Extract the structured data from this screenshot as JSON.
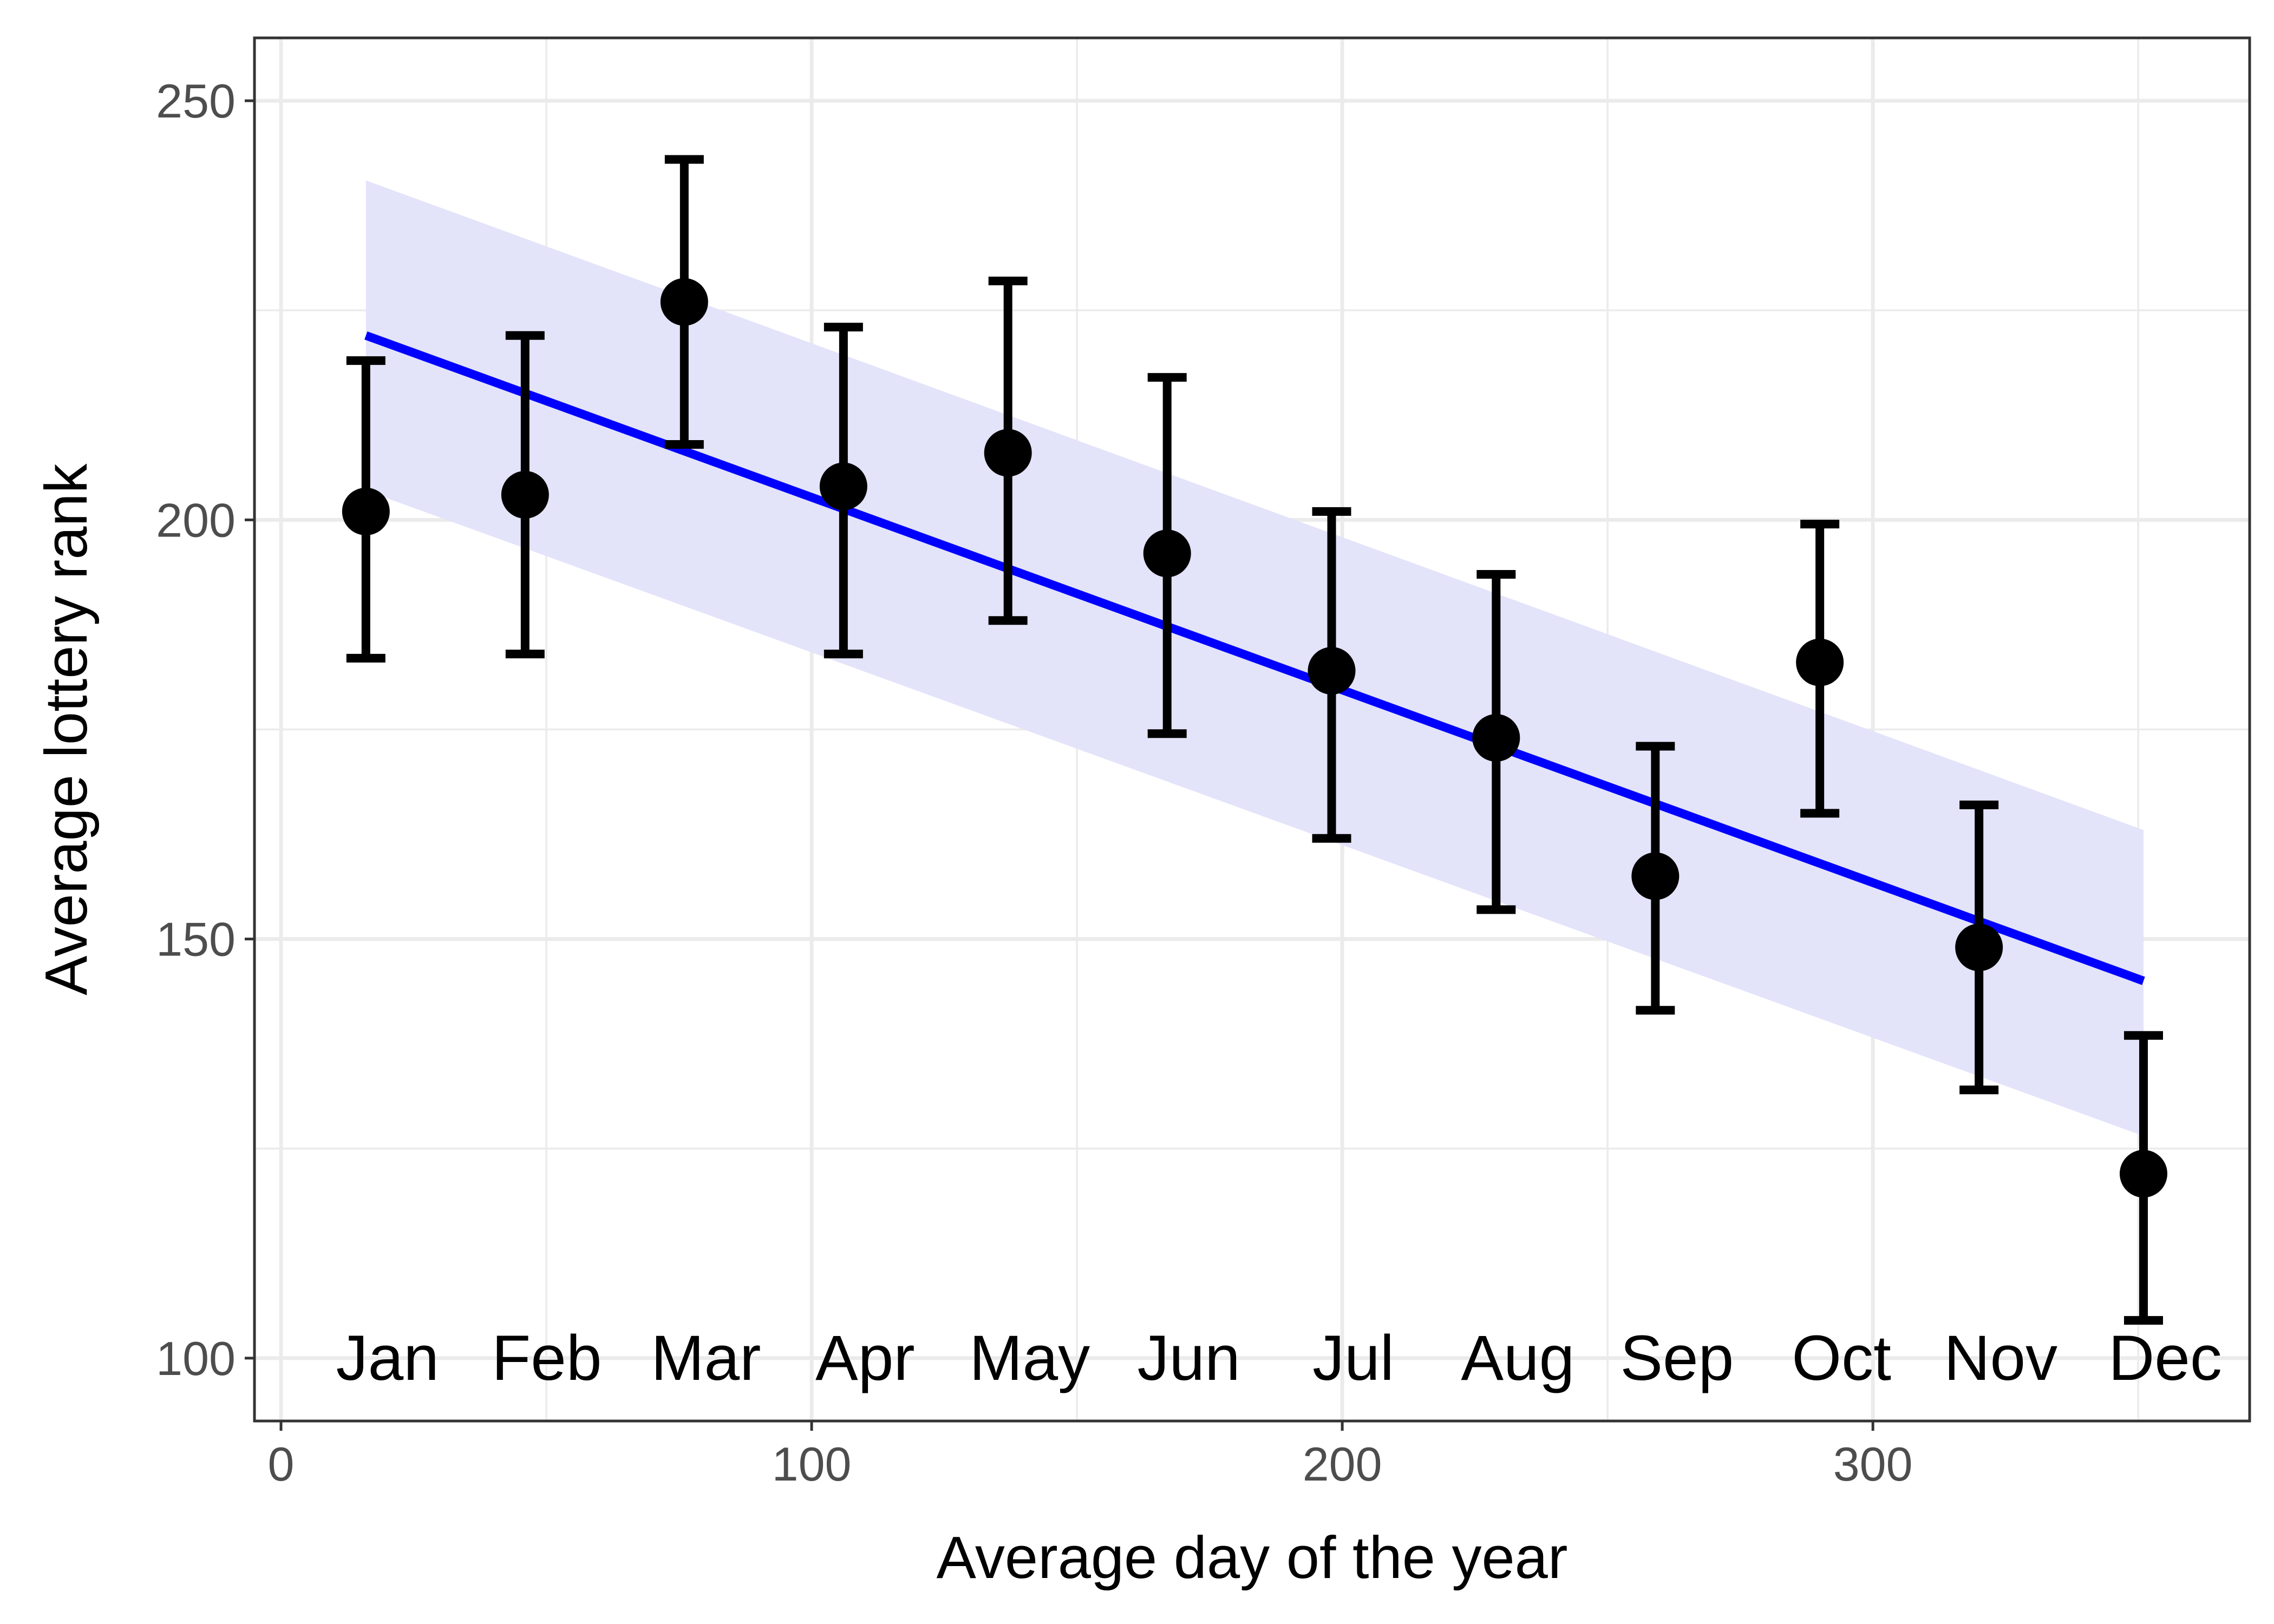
{
  "chart_data": {
    "type": "scatter",
    "title": "",
    "xlabel": "Average day of the year",
    "ylabel": "Average lottery rank",
    "xlim": [
      -5,
      371
    ],
    "ylim": [
      92.5,
      257.5
    ],
    "x_ticks": [
      0,
      100,
      200,
      300
    ],
    "y_ticks": [
      100,
      150,
      200,
      250
    ],
    "x_minor_ticks": [
      50,
      150,
      250,
      350
    ],
    "y_minor_ticks": [
      125,
      175,
      225
    ],
    "grid": true,
    "legend": "none",
    "colors": {
      "points": "#000000",
      "fit_line": "#0000ff",
      "confidence_band": "#e3e3fa",
      "grid": "#ebebeb",
      "panel_border": "#333333"
    },
    "series": [
      {
        "type": "points_with_errorbars",
        "categories": [
          "Jan",
          "Feb",
          "Mar",
          "Apr",
          "May",
          "Jun",
          "Jul",
          "Aug",
          "Sep",
          "Oct",
          "Nov",
          "Dec"
        ],
        "x": [
          16,
          46,
          76,
          106,
          137,
          167,
          198,
          229,
          259,
          290,
          320,
          351
        ],
        "y": [
          201,
          203,
          226,
          204,
          208,
          196,
          182,
          174,
          157.5,
          183,
          149,
          122
        ],
        "ymin": [
          183.5,
          184,
          209,
          184,
          188,
          174.5,
          162,
          153.5,
          141.5,
          165,
          132,
          104.5
        ],
        "ymax": [
          219,
          222,
          243,
          223,
          228.5,
          217,
          201,
          193.5,
          173,
          199.5,
          166,
          138.5
        ]
      },
      {
        "type": "linear_fit",
        "x": [
          16,
          351
        ],
        "y": [
          222,
          145
        ],
        "band_lower": [
          203.5,
          126.5
        ],
        "band_upper": [
          240.5,
          163
        ]
      }
    ]
  }
}
